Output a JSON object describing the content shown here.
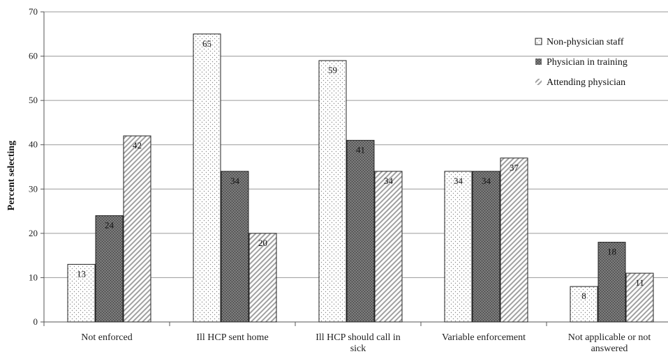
{
  "chart_data": {
    "type": "bar",
    "title": "",
    "xlabel": "",
    "ylabel": "Percent selecting",
    "ylim": [
      0,
      70
    ],
    "yticks": [
      0,
      10,
      20,
      30,
      40,
      50,
      60,
      70
    ],
    "grid": true,
    "legend_position": "top-right",
    "categories": [
      [
        "Not enforced"
      ],
      [
        "Ill HCP sent home"
      ],
      [
        "Ill HCP should call in",
        "sick"
      ],
      [
        "Variable enforcement"
      ],
      [
        "Not applicable or not",
        "answered"
      ]
    ],
    "series": [
      {
        "name": "Non-physician staff",
        "pattern": "dots",
        "fill": "#ffffff",
        "values": [
          13,
          65,
          59,
          34,
          8
        ]
      },
      {
        "name": "Physician in training",
        "pattern": "dense",
        "fill": "#666666",
        "values": [
          24,
          34,
          41,
          34,
          18
        ]
      },
      {
        "name": "Attending physician",
        "pattern": "diagonal",
        "fill": "#ffffff",
        "values": [
          42,
          20,
          34,
          37,
          11
        ]
      }
    ]
  }
}
